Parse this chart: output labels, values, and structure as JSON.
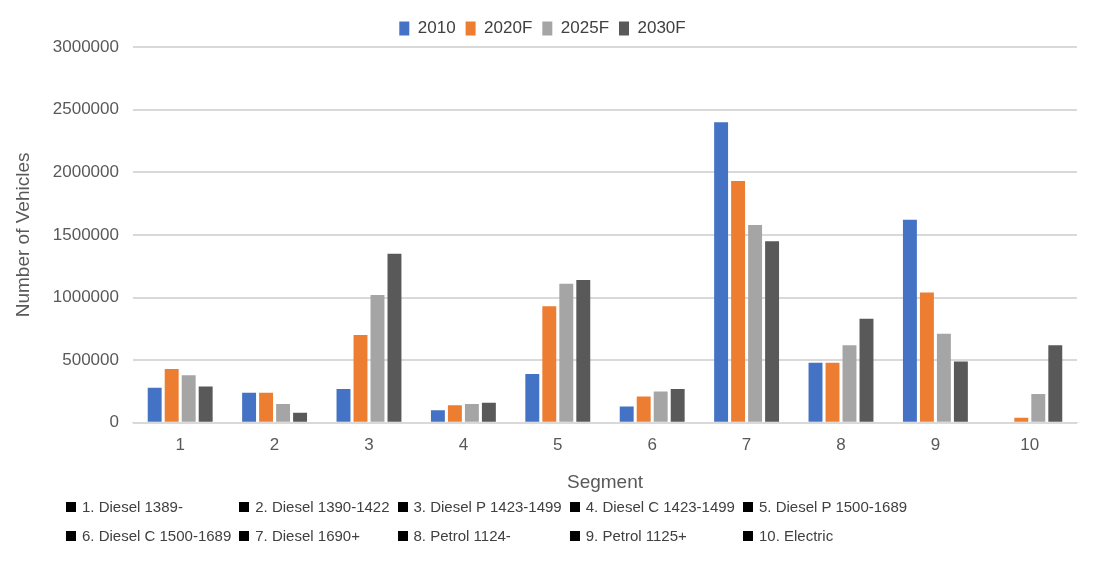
{
  "chart_data": {
    "type": "bar",
    "xlabel": "Segment",
    "ylabel": "Number of Vehicles",
    "categories": [
      "1",
      "2",
      "3",
      "4",
      "5",
      "6",
      "7",
      "8",
      "9",
      "10"
    ],
    "series": [
      {
        "name": "2010",
        "color": "#4472c4",
        "values": [
          280000,
          240000,
          270000,
          100000,
          390000,
          130000,
          2400000,
          480000,
          1620000,
          0
        ]
      },
      {
        "name": "2020F",
        "color": "#ed7d31",
        "values": [
          430000,
          240000,
          700000,
          140000,
          930000,
          210000,
          1930000,
          480000,
          1040000,
          40000
        ]
      },
      {
        "name": "2025F",
        "color": "#a5a5a5",
        "values": [
          380000,
          150000,
          1020000,
          150000,
          1110000,
          250000,
          1580000,
          620000,
          710000,
          230000
        ]
      },
      {
        "name": "2030F",
        "color": "#595959",
        "values": [
          290000,
          80000,
          1350000,
          160000,
          1140000,
          270000,
          1450000,
          830000,
          490000,
          620000
        ]
      }
    ],
    "ylim": [
      0,
      3000000
    ],
    "yticks": [
      0,
      500000,
      1000000,
      1500000,
      2000000,
      2500000,
      3000000
    ],
    "grid": "y",
    "legend": "top",
    "annotations": [
      "1. Diesel 1389-",
      "2. Diesel 1390-1422",
      "3. Diesel P 1423-1499",
      "4. Diesel C 1423-1499",
      "5. Diesel P 1500-1689",
      "6. Diesel C 1500-1689",
      "7. Diesel 1690+",
      "8. Petrol 1124-",
      "9. Petrol 1125+",
      "10. Electric"
    ]
  }
}
